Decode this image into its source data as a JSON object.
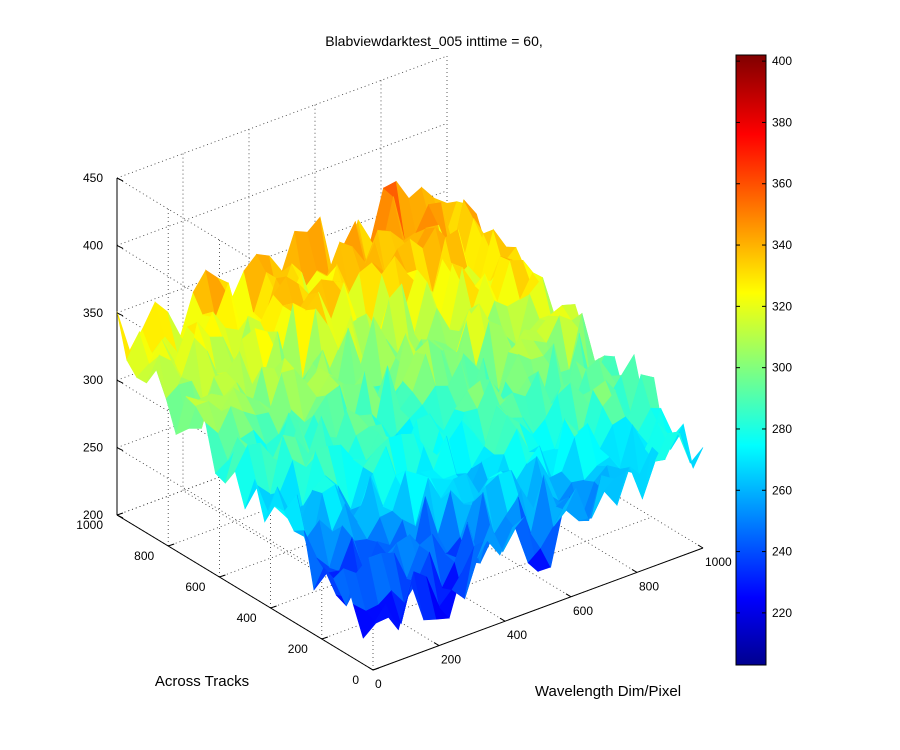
{
  "chart_data": {
    "type": "surface",
    "title": "Blabviewdarktest_005 inttime = 60,",
    "xlabel": "Wavelength Dim/Pixel",
    "ylabel": "Across Tracks",
    "zlabel": "",
    "x_ticks": [
      "0",
      "200",
      "400",
      "600",
      "800",
      "1000"
    ],
    "y_ticks": [
      "0",
      "200",
      "400",
      "600",
      "800",
      "1000"
    ],
    "z_ticks": [
      "200",
      "250",
      "300",
      "350",
      "400",
      "450"
    ],
    "xlim": [
      0,
      1000
    ],
    "ylim": [
      0,
      1000
    ],
    "zlim": [
      200,
      450
    ],
    "grid": true,
    "colormap": "jet",
    "colorbar": {
      "ticks": [
        "220",
        "240",
        "260",
        "280",
        "300",
        "320",
        "340",
        "360",
        "380",
        "400"
      ],
      "range": [
        203,
        402
      ],
      "placement": "right"
    },
    "surface_summary": {
      "corner_values": [
        {
          "x": 0,
          "y": 0,
          "z": 225
        },
        {
          "x": 1000,
          "y": 0,
          "z": 275
        },
        {
          "x": 0,
          "y": 1000,
          "z": 330
        },
        {
          "x": 1000,
          "y": 1000,
          "z": 350
        }
      ],
      "noise_amplitude": 25
    }
  }
}
